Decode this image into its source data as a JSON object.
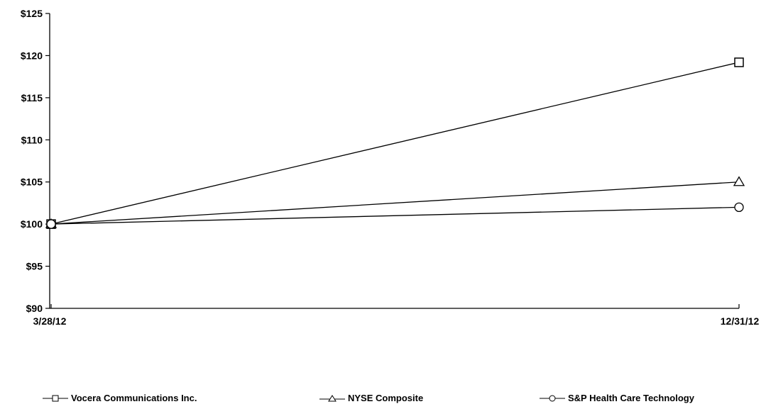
{
  "chart_data": {
    "type": "line",
    "title": "",
    "xlabel": "",
    "ylabel": "",
    "x": [
      "3/28/12",
      "12/31/12"
    ],
    "ylim": [
      90,
      125
    ],
    "yticks": [
      "$90",
      "$95",
      "$100",
      "$105",
      "$110",
      "$115",
      "$120",
      "$125"
    ],
    "ytick_values": [
      90,
      95,
      100,
      105,
      110,
      115,
      120,
      125
    ],
    "grid": false,
    "legend_position": "bottom",
    "series": [
      {
        "name": "Vocera Communications Inc.",
        "marker": "square",
        "values": [
          100,
          119.2
        ]
      },
      {
        "name": "NYSE Composite",
        "marker": "triangle",
        "values": [
          100,
          105
        ]
      },
      {
        "name": "S&P Health Care Technology",
        "marker": "circle",
        "values": [
          100,
          102
        ]
      }
    ],
    "line_color": "#000000"
  }
}
